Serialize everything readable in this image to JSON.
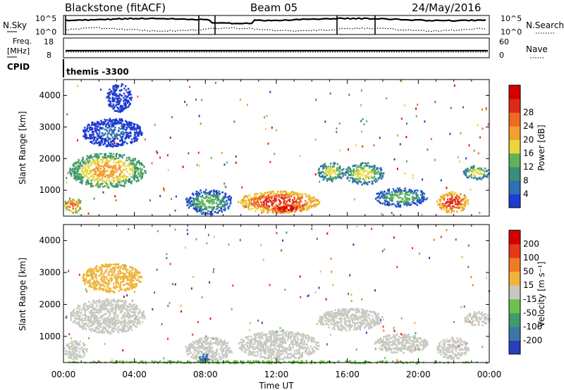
{
  "header": {
    "site": "Blackstone (fitACF)",
    "beam": "Beam 05",
    "date": "24/May/2016"
  },
  "colors": {
    "power_scale": [
      "#1f3cd0",
      "#2f6fb6",
      "#3a8f7a",
      "#5fb35a",
      "#e8d63c",
      "#f2a02e",
      "#ee6a22",
      "#e02a18",
      "#d40000"
    ],
    "velocity_scale": [
      "#2a3fb8",
      "#3a78a8",
      "#3f9b6a",
      "#6cc14a",
      "#c8c8c0",
      "#f0b43a",
      "#ee7d22",
      "#e53a1a",
      "#d40000"
    ],
    "ground_scatter": "#c8c8c0"
  },
  "top_panels": {
    "nsky": {
      "label": "N.Sky",
      "left_ticks": [
        "10^5",
        "10^0"
      ],
      "right_label": "N.Search",
      "right_ticks": [
        "10^5",
        "10^0"
      ]
    },
    "freq": {
      "label_line1": "Freq.",
      "label_line2": "[MHz]",
      "left_ticks": [
        "18",
        "8"
      ],
      "right_label": "Nave",
      "right_ticks": [
        "60",
        "0"
      ]
    },
    "cpid": {
      "label": "CPID",
      "value": "themis -3300"
    }
  },
  "chart_data": [
    {
      "type": "heatmap",
      "title": "",
      "ylabel": "Slant Range [km]",
      "colorbar_label": "Power [dB]",
      "colorbar_ticks": [
        "4",
        "8",
        "12",
        "16",
        "20",
        "24",
        "28"
      ],
      "x_ticks": [
        "00:00",
        "04:00",
        "08:00",
        "12:00",
        "16:00",
        "20:00",
        "00:00"
      ],
      "y_ticks": [
        "1000",
        "2000",
        "3000",
        "4000"
      ],
      "xlim_hours": [
        0,
        24
      ],
      "ylim_km": [
        180,
        4500
      ],
      "regions": [
        {
          "t0": 0.0,
          "t1": 1.0,
          "r0": 300,
          "r1": 800,
          "level": 6
        },
        {
          "t0": 0.3,
          "t1": 4.6,
          "r0": 1100,
          "r1": 2200,
          "level": 5
        },
        {
          "t0": 1.0,
          "t1": 4.4,
          "r0": 2400,
          "r1": 3300,
          "level": 1
        },
        {
          "t0": 2.4,
          "t1": 3.8,
          "r0": 3500,
          "r1": 4400,
          "level": 0
        },
        {
          "t0": 6.8,
          "t1": 9.5,
          "r0": 250,
          "r1": 1050,
          "level": 3
        },
        {
          "t0": 9.8,
          "t1": 14.4,
          "r0": 300,
          "r1": 1000,
          "level": 7
        },
        {
          "t0": 11.5,
          "t1": 13.5,
          "r0": 300,
          "r1": 600,
          "level": 8
        },
        {
          "t0": 14.3,
          "t1": 15.8,
          "r0": 1300,
          "r1": 1900,
          "level": 4
        },
        {
          "t0": 15.8,
          "t1": 18.0,
          "r0": 1200,
          "r1": 1900,
          "level": 4
        },
        {
          "t0": 17.5,
          "t1": 20.5,
          "r0": 500,
          "r1": 1100,
          "level": 3
        },
        {
          "t0": 21.0,
          "t1": 22.8,
          "r0": 300,
          "r1": 1000,
          "level": 7
        },
        {
          "t0": 22.5,
          "t1": 24.0,
          "r0": 1350,
          "r1": 1800,
          "level": 4
        }
      ]
    },
    {
      "type": "heatmap",
      "title": "",
      "ylabel": "Slant Range [km]",
      "xlabel": "Time UT",
      "colorbar_label": "Velocity [m s⁻¹]",
      "colorbar_ticks": [
        "-200",
        "-100",
        "-50",
        "-15",
        "15",
        "50",
        "100",
        "200"
      ],
      "x_ticks": [
        "00:00",
        "04:00",
        "08:00",
        "12:00",
        "16:00",
        "20:00",
        "00:00"
      ],
      "y_ticks": [
        "1000",
        "2000",
        "3000",
        "4000"
      ],
      "xlim_hours": [
        0,
        24
      ],
      "ylim_km": [
        180,
        4500
      ],
      "regions": [
        {
          "t0": 0.0,
          "t1": 1.3,
          "r0": 300,
          "r1": 900,
          "level": 4
        },
        {
          "t0": 0.3,
          "t1": 4.6,
          "r0": 1100,
          "r1": 2200,
          "level": 4
        },
        {
          "t0": 1.0,
          "t1": 4.4,
          "r0": 2400,
          "r1": 3300,
          "level": 5
        },
        {
          "t0": 6.8,
          "t1": 9.5,
          "r0": 250,
          "r1": 1000,
          "level": 4
        },
        {
          "t0": 7.6,
          "t1": 8.2,
          "r0": 200,
          "r1": 500,
          "level": 1
        },
        {
          "t0": 9.8,
          "t1": 14.4,
          "r0": 300,
          "r1": 1200,
          "level": 4
        },
        {
          "t0": 14.3,
          "t1": 18.0,
          "r0": 1200,
          "r1": 1900,
          "level": 4
        },
        {
          "t0": 17.5,
          "t1": 20.5,
          "r0": 500,
          "r1": 1100,
          "level": 4
        },
        {
          "t0": 21.0,
          "t1": 22.8,
          "r0": 300,
          "r1": 1000,
          "level": 4
        },
        {
          "t0": 22.5,
          "t1": 24.0,
          "r0": 1350,
          "r1": 1800,
          "level": 4
        },
        {
          "t0": 0.0,
          "t1": 24.0,
          "r0": 180,
          "r1": 260,
          "level": 3
        }
      ]
    }
  ]
}
